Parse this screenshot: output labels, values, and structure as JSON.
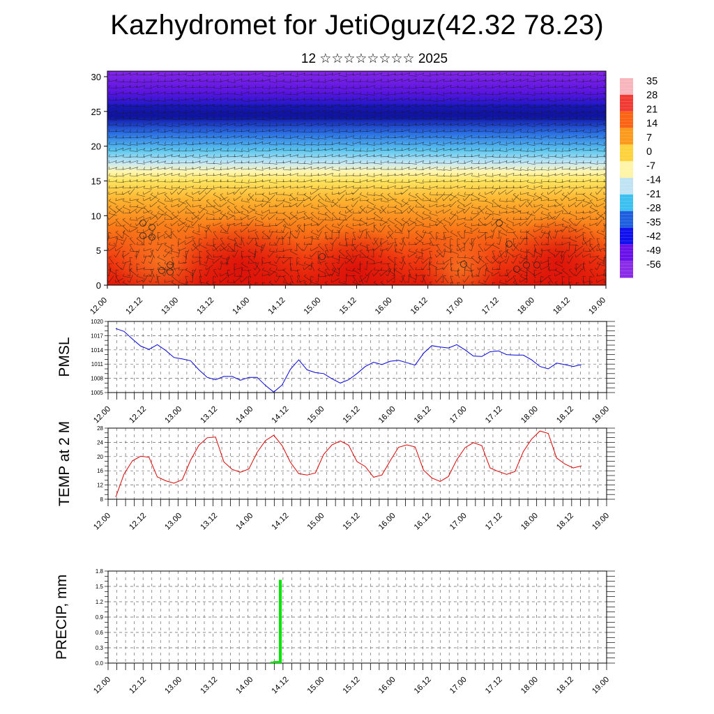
{
  "header": {
    "title": "Kazhydromet for JetiOguz(42.32 78.23)",
    "subtitle": "12 ☆☆☆☆☆☆☆☆ 2025"
  },
  "time_labels": [
    "12.00",
    "12.12",
    "13.00",
    "13.12",
    "14.00",
    "14.12",
    "15.00",
    "15.12",
    "16.00",
    "16.12",
    "17.00",
    "17.12",
    "18.00",
    "18.12",
    "19.00"
  ],
  "chart_data": [
    {
      "type": "heatmap",
      "title": "",
      "x": "time_labels",
      "yticks": [
        0,
        5,
        10,
        15,
        20,
        25,
        30
      ],
      "ylim": [
        0,
        30.8
      ],
      "colorbar_labels": [
        "35",
        "28",
        "21",
        "14",
        "7",
        "0",
        "-7",
        "-14",
        "-21",
        "-28",
        "-35",
        "-42",
        "-49",
        "-56"
      ],
      "colorbar_colors": [
        "#f8b6bc",
        "#f03a33",
        "#fa6414",
        "#fc9a1e",
        "#fdd23c",
        "#fff4a8",
        "#bfe3f3",
        "#3cc0f0",
        "#1e5fe0",
        "#1010ee",
        "#6a10e8",
        "#8a2be8"
      ],
      "colors": {
        "surface_hot": "#e8200c",
        "mid": "#ffef70",
        "cold_band": "#14249a",
        "top": "#7a1ce6"
      }
    },
    {
      "type": "line",
      "ylabel": "PMSL",
      "yticks": [
        1005,
        1008,
        1011,
        1014,
        1017,
        1020
      ],
      "ylim": [
        1005,
        1020
      ],
      "color": "#0000dd",
      "values": [
        1018.5,
        1017.9,
        1016.3,
        1014.8,
        1014.1,
        1015.1,
        1013.9,
        1012.4,
        1012.1,
        1011.7,
        1009.8,
        1008.2,
        1007.7,
        1008.4,
        1008.4,
        1007.6,
        1008.2,
        1008.2,
        1006.5,
        1005.1,
        1006.6,
        1009.9,
        1011.9,
        1009.8,
        1009.2,
        1009.0,
        1007.9,
        1007.0,
        1007.7,
        1009.0,
        1010.5,
        1011.4,
        1010.9,
        1011.6,
        1011.8,
        1011.3,
        1010.8,
        1013.3,
        1014.9,
        1014.6,
        1014.4,
        1015.1,
        1014.0,
        1012.7,
        1012.6,
        1013.6,
        1013.8,
        1013.0,
        1012.9,
        1012.9,
        1011.9,
        1010.5,
        1010.0,
        1011.2,
        1010.9,
        1010.5,
        1010.9
      ]
    },
    {
      "type": "line",
      "ylabel": "TEMP at 2 M",
      "yticks": [
        8,
        12,
        16,
        20,
        24,
        28
      ],
      "ylim": [
        8,
        28
      ],
      "color": "#dd0000",
      "values": [
        8.6,
        15.1,
        18.8,
        20.1,
        19.8,
        14.3,
        13.2,
        12.5,
        13.5,
        19.0,
        23.2,
        25.3,
        25.5,
        18.5,
        16.4,
        15.6,
        16.5,
        21.2,
        24.5,
        26.0,
        23.1,
        18.4,
        15.2,
        14.8,
        15.4,
        20.6,
        23.3,
        24.4,
        23.2,
        18.6,
        17.2,
        14.2,
        14.8,
        18.8,
        22.6,
        23.3,
        22.7,
        16.2,
        14.0,
        13.0,
        14.4,
        19.1,
        22.5,
        23.9,
        23.1,
        16.8,
        15.8,
        15.0,
        15.8,
        21.4,
        24.9,
        27.2,
        26.5,
        19.6,
        17.9,
        16.8,
        17.4
      ]
    },
    {
      "type": "bar",
      "ylabel": "PRECIP, mm",
      "yticks": [
        0.0,
        0.3,
        0.6,
        0.9,
        1.2,
        1.5,
        1.8
      ],
      "ylim": [
        0,
        1.8
      ],
      "color": "#00e600",
      "values": [
        0,
        0,
        0,
        0,
        0,
        0,
        0,
        0,
        0,
        0,
        0,
        0,
        0,
        0,
        0,
        0,
        0,
        0,
        0,
        0,
        0,
        0,
        0,
        0,
        0,
        0,
        0,
        0,
        0,
        0,
        0,
        0,
        0,
        0,
        0,
        0,
        0,
        0,
        0,
        0,
        0,
        0,
        0,
        0,
        0,
        0,
        0,
        0,
        0,
        0,
        0,
        0,
        0,
        0,
        0,
        0,
        0.03,
        0.04,
        0.04,
        1.63,
        0,
        0,
        0,
        0,
        0,
        0,
        0,
        0,
        0,
        0,
        0,
        0,
        0,
        0,
        0,
        0,
        0,
        0,
        0,
        0,
        0,
        0,
        0,
        0,
        0,
        0,
        0,
        0,
        0,
        0,
        0,
        0,
        0,
        0,
        0,
        0,
        0,
        0,
        0,
        0,
        0,
        0,
        0,
        0,
        0,
        0,
        0,
        0,
        0,
        0,
        0,
        0,
        0,
        0,
        0,
        0,
        0,
        0,
        0,
        0,
        0,
        0,
        0,
        0,
        0,
        0,
        0,
        0,
        0,
        0,
        0,
        0,
        0,
        0,
        0,
        0,
        0,
        0,
        0,
        0,
        0,
        0,
        0,
        0,
        0,
        0,
        0,
        0,
        0,
        0,
        0,
        0,
        0,
        0,
        0,
        0,
        0,
        0,
        0,
        0,
        0,
        0,
        0,
        0,
        0,
        0,
        0,
        0,
        0,
        0,
        0,
        0,
        0,
        0,
        0
      ]
    }
  ]
}
